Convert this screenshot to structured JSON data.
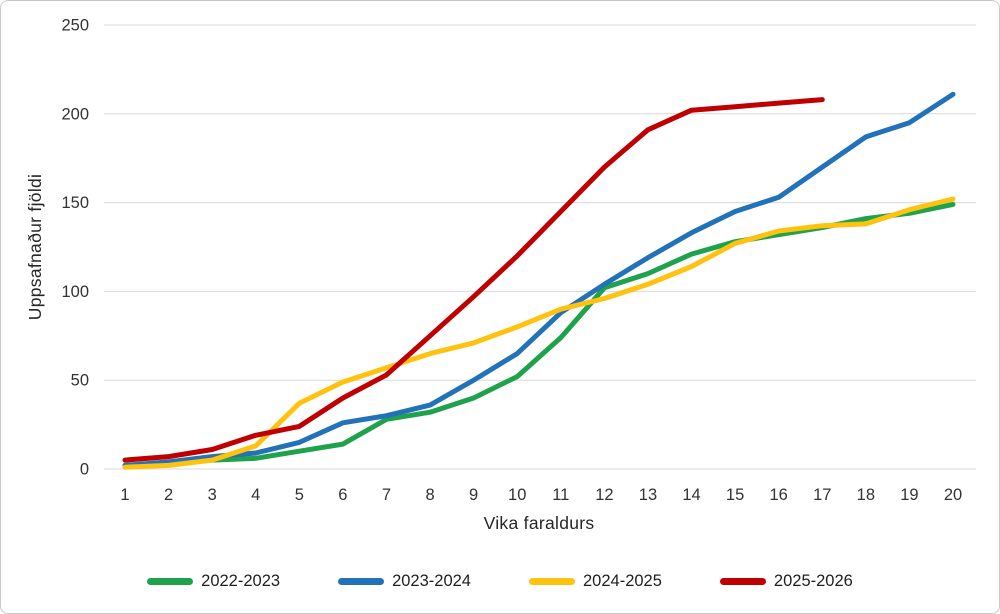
{
  "chart_data": {
    "type": "line",
    "title": "",
    "xlabel": "Vika faraldurs",
    "ylabel": "Uppsafnaður fjöldi",
    "weeks": [
      1,
      2,
      3,
      4,
      5,
      6,
      7,
      8,
      9,
      10,
      11,
      12,
      13,
      14,
      15,
      16,
      17,
      18,
      19,
      20
    ],
    "yticks": [
      0,
      50,
      100,
      150,
      200,
      250
    ],
    "ylim": [
      0,
      250
    ],
    "grid": true,
    "legend_position": "bottom",
    "colors": {
      "gridline": "#d9d9d9",
      "tick_text": "#333333",
      "axis_title_text": "#262626"
    },
    "series": [
      {
        "name": "2022-2023",
        "color": "#1fa24c",
        "values": [
          2,
          3,
          5,
          6,
          10,
          14,
          28,
          32,
          40,
          52,
          74,
          102,
          110,
          121,
          128,
          132,
          136,
          141,
          144,
          149
        ]
      },
      {
        "name": "2023-2024",
        "color": "#2272b9",
        "values": [
          2,
          4,
          7,
          9,
          15,
          26,
          30,
          36,
          50,
          65,
          88,
          104,
          119,
          133,
          145,
          153,
          170,
          187,
          195,
          211
        ]
      },
      {
        "name": "2024-2025",
        "color": "#ffc20e",
        "values": [
          1,
          2,
          5,
          13,
          37,
          49,
          57,
          65,
          71,
          80,
          90,
          96,
          104,
          114,
          127,
          134,
          137,
          138,
          146,
          152
        ]
      },
      {
        "name": "2025-2026",
        "color": "#c00000",
        "values": [
          5,
          7,
          11,
          19,
          24,
          40,
          53,
          75,
          97,
          120,
          145,
          170,
          191,
          202,
          204,
          206,
          208
        ]
      }
    ]
  }
}
